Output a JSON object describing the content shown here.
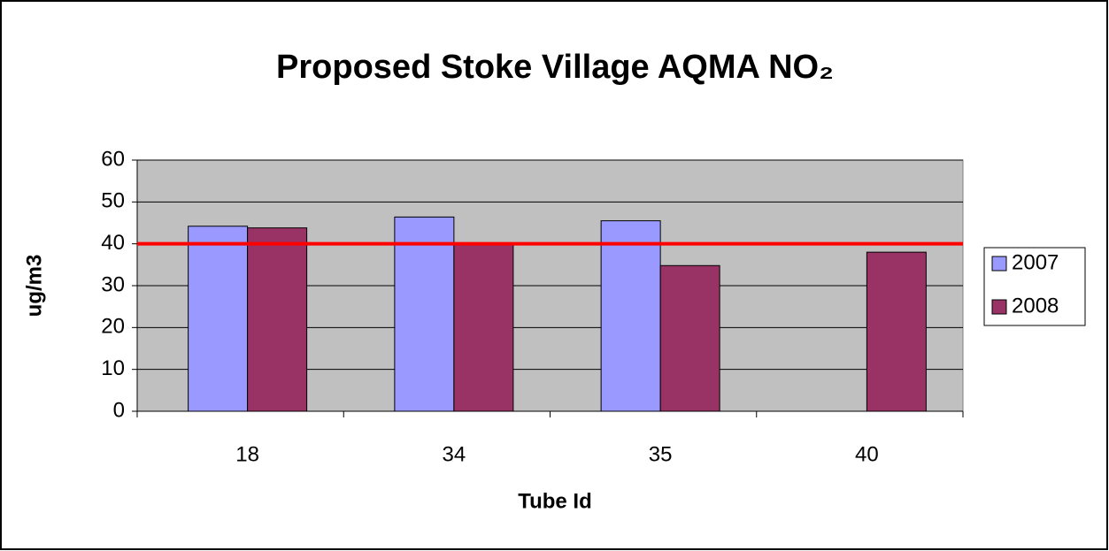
{
  "chart_data": {
    "type": "bar",
    "title": "Proposed Stoke Village AQMA NO₂",
    "x_label": "Tube Id",
    "y_label": "ug/m3",
    "categories": [
      "18",
      "34",
      "35",
      "40"
    ],
    "series": [
      {
        "name": "2007",
        "color": "#9999ff",
        "values": [
          44.2,
          46.4,
          45.5,
          null
        ]
      },
      {
        "name": "2008",
        "color": "#993366",
        "values": [
          43.8,
          40.2,
          34.8,
          38
        ]
      }
    ],
    "threshold": 40,
    "threshold_color": "#ff0000",
    "ylim": [
      0,
      60
    ],
    "yticks": [
      0,
      10,
      20,
      30,
      40,
      50,
      60
    ],
    "grid": true,
    "plot_background": "#c0c0c0",
    "legend": "right"
  }
}
